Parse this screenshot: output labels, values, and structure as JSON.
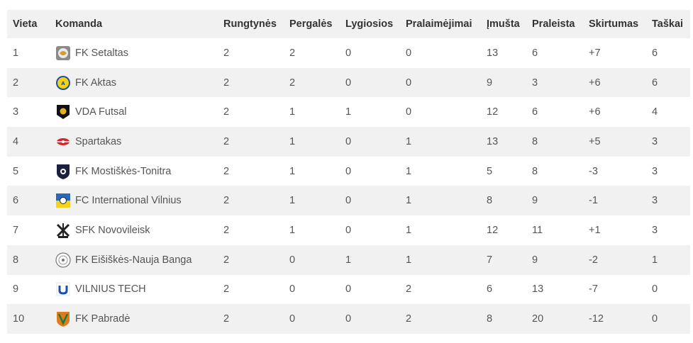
{
  "table": {
    "headers": [
      "Vieta",
      "Komanda",
      "Rungtynės",
      "Pergalės",
      "Lygiosios",
      "Pralaimėjimai",
      "Įmušta",
      "Praleista",
      "Skirtumas",
      "Taškai"
    ],
    "rows": [
      {
        "place": "1",
        "team": "FK Setaltas",
        "logo": "setaltas-logo-icon",
        "played": "2",
        "wins": "2",
        "draws": "0",
        "losses": "0",
        "scored": "13",
        "conceded": "6",
        "diff": "+7",
        "points": "6"
      },
      {
        "place": "2",
        "team": "FK Aktas",
        "logo": "aktas-logo-icon",
        "played": "2",
        "wins": "2",
        "draws": "0",
        "losses": "0",
        "scored": "9",
        "conceded": "3",
        "diff": "+6",
        "points": "6"
      },
      {
        "place": "3",
        "team": "VDA Futsal",
        "logo": "vda-futsal-logo-icon",
        "played": "2",
        "wins": "1",
        "draws": "1",
        "losses": "0",
        "scored": "12",
        "conceded": "6",
        "diff": "+6",
        "points": "4"
      },
      {
        "place": "4",
        "team": "Spartakas",
        "logo": "spartakas-logo-icon",
        "played": "2",
        "wins": "1",
        "draws": "0",
        "losses": "1",
        "scored": "13",
        "conceded": "8",
        "diff": "+5",
        "points": "3"
      },
      {
        "place": "5",
        "team": "FK Mostiškės-Tonitra",
        "logo": "mostiskes-logo-icon",
        "played": "2",
        "wins": "1",
        "draws": "0",
        "losses": "1",
        "scored": "5",
        "conceded": "8",
        "diff": "-3",
        "points": "3"
      },
      {
        "place": "6",
        "team": "FC International Vilnius",
        "logo": "international-vilnius-logo-icon",
        "played": "2",
        "wins": "1",
        "draws": "0",
        "losses": "1",
        "scored": "8",
        "conceded": "9",
        "diff": "-1",
        "points": "3"
      },
      {
        "place": "7",
        "team": "SFK Novovileisk",
        "logo": "novovileisk-logo-icon",
        "played": "2",
        "wins": "1",
        "draws": "0",
        "losses": "1",
        "scored": "12",
        "conceded": "11",
        "diff": "+1",
        "points": "3"
      },
      {
        "place": "8",
        "team": "FK Eišiškės-Nauja Banga",
        "logo": "eisiskes-logo-icon",
        "played": "2",
        "wins": "0",
        "draws": "1",
        "losses": "1",
        "scored": "7",
        "conceded": "9",
        "diff": "-2",
        "points": "1"
      },
      {
        "place": "9",
        "team": "VILNIUS TECH",
        "logo": "vilnius-tech-logo-icon",
        "played": "2",
        "wins": "0",
        "draws": "0",
        "losses": "2",
        "scored": "6",
        "conceded": "13",
        "diff": "-7",
        "points": "0"
      },
      {
        "place": "10",
        "team": "FK Pabradė",
        "logo": "pabrade-logo-icon",
        "played": "2",
        "wins": "0",
        "draws": "0",
        "losses": "2",
        "scored": "8",
        "conceded": "20",
        "diff": "-12",
        "points": "0"
      }
    ]
  }
}
